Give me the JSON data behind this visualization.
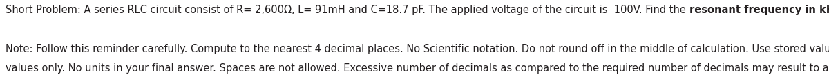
{
  "line1_normal": "Short Problem: A series RLC circuit consist of R= 2,600Ω, L= 91mH and C=18.7 pF. The applied voltage of the circuit is  100V. Find the ",
  "line1_bold": "resonant frequency in kHz",
  "line1_end": ".",
  "line2": "Note: Follow this reminder carefully. Compute to the nearest 4 decimal places. No Scientific notation. Do not round off in the middle of calculation. Use stored values. Write the numerical",
  "line3": "values only. No units in your final answer. Spaces are not allowed. Excessive number of decimals as compared to the required number of decimals may result to an incorrect answer.",
  "bg_color": "#ffffff",
  "text_color": "#231F20",
  "font_size": 10.5,
  "fig_width": 12.0,
  "fig_height": 1.16,
  "dpi": 100
}
